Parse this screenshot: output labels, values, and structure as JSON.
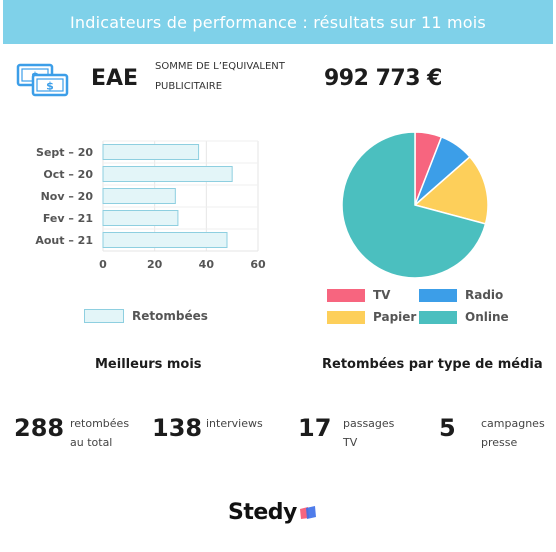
{
  "header": {
    "title": "Indicateurs de performance : résultats sur 11 mois"
  },
  "eae": {
    "icon": "money-bills-icon",
    "title": "EAE",
    "description_line1": "SOMME DE L’EQUIVALENT",
    "description_line2": "PUBLICITAIRE",
    "value": "992 773 €"
  },
  "captions": {
    "best_months": "Meilleurs mois",
    "by_media": "Retombées par type de média"
  },
  "stats": [
    {
      "number": "288",
      "label_line1": "retombées",
      "label_line2": "au total"
    },
    {
      "number": "138",
      "label_line1": "interviews",
      "label_line2": ""
    },
    {
      "number": "17",
      "label_line1": "passages",
      "label_line2": "TV"
    },
    {
      "number": "5",
      "label_line1": "campagnes",
      "label_line2": "presse"
    }
  ],
  "logo": {
    "text": "Stedy",
    "icon": "stedy-flag-icon"
  },
  "colors": {
    "header_bg": "#7fd1e9",
    "bar_fill": "#e3f5f8",
    "bar_stroke": "#8ecfe0",
    "tv": "#f7657f",
    "radio": "#3c9ee8",
    "papier": "#fdcf5a",
    "online": "#4bbfbf"
  },
  "chart_data": [
    {
      "type": "bar",
      "orientation": "horizontal",
      "categories": [
        "Sept – 20",
        "Oct – 20",
        "Nov – 20",
        "Fev – 21",
        "Aout – 21"
      ],
      "series": [
        {
          "name": "Retombées",
          "values": [
            37,
            50,
            28,
            29,
            48
          ]
        }
      ],
      "xlim": [
        0,
        60
      ],
      "xticks": [
        "0",
        "20",
        "40",
        "60"
      ],
      "grid": true,
      "legend": "bottom"
    },
    {
      "type": "pie",
      "labels": [
        "TV",
        "Radio",
        "Papier",
        "Online"
      ],
      "values": [
        17,
        22,
        45,
        204
      ],
      "legend": "bottom"
    }
  ]
}
